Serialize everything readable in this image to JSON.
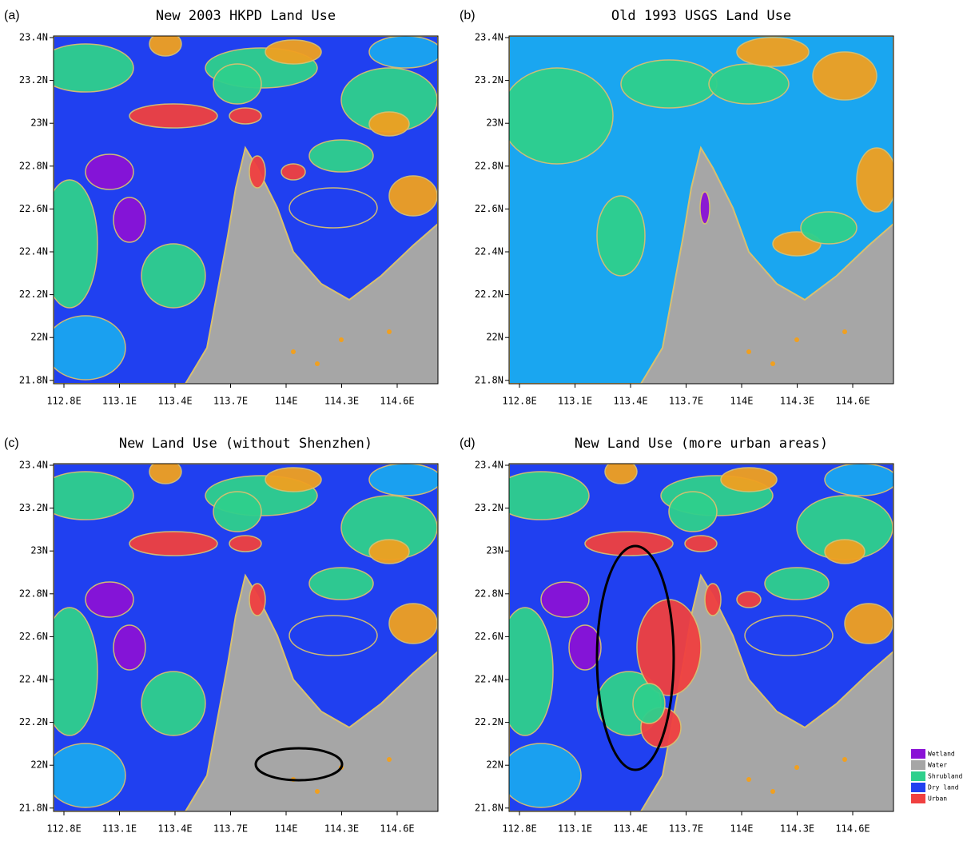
{
  "panels": [
    {
      "label": "(a)",
      "title": "New 2003 HKPD Land Use",
      "lat_ticks": [
        "23.4N",
        "23.2N",
        "23N",
        "22.8N",
        "22.6N",
        "22.4N",
        "22.2N",
        "22N",
        "21.8N"
      ],
      "lon_ticks": [
        "112.8E",
        "113.1E",
        "113.4E",
        "113.7E",
        "114E",
        "114.3E",
        "114.6E"
      ]
    },
    {
      "label": "(b)",
      "title": "Old 1993 USGS Land Use",
      "lat_ticks": [
        "23.4N",
        "23.2N",
        "23N",
        "22.8N",
        "22.6N",
        "22.4N",
        "22.2N",
        "22N",
        "21.8N"
      ],
      "lon_ticks": [
        "112.8E",
        "113.1E",
        "113.4E",
        "113.7E",
        "114E",
        "114.3E",
        "114.6E"
      ]
    },
    {
      "label": "(c)",
      "title": "New Land Use (without Shenzhen)",
      "lat_ticks": [
        "23.4N",
        "23.2N",
        "23N",
        "22.8N",
        "22.6N",
        "22.4N",
        "22.2N",
        "22N",
        "21.8N"
      ],
      "lon_ticks": [
        "112.8E",
        "113.1E",
        "113.4E",
        "113.7E",
        "114E",
        "114.3E",
        "114.6E"
      ]
    },
    {
      "label": "(d)",
      "title": "New Land Use (more urban areas)",
      "lat_ticks": [
        "23.4N",
        "23.2N",
        "23N",
        "22.8N",
        "22.6N",
        "22.4N",
        "22.2N",
        "22N",
        "21.8N"
      ],
      "lon_ticks": [
        "112.8E",
        "113.1E",
        "113.4E",
        "113.7E",
        "114E",
        "114.3E",
        "114.6E"
      ]
    }
  ],
  "legend": [
    {
      "name": "Wetland",
      "color": "#8a12d6"
    },
    {
      "name": "Water",
      "color": "#a6a6a6"
    },
    {
      "name": "Shrubland",
      "color": "#2fd08c"
    },
    {
      "name": "Dry land",
      "color": "#2040f0"
    },
    {
      "name": "Urban",
      "color": "#f04040"
    }
  ]
}
